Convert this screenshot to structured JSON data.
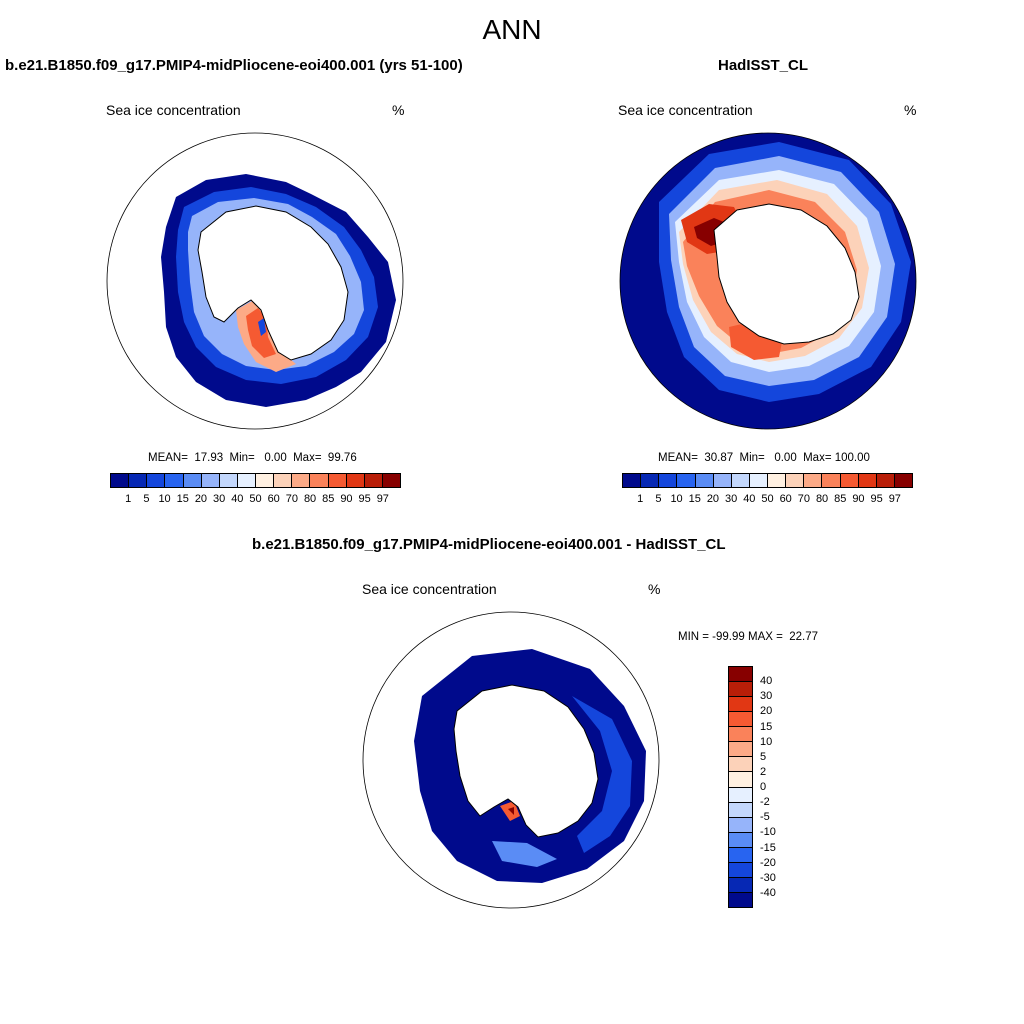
{
  "title": "ANN",
  "panels": [
    {
      "title": "b.e21.B1850.f09_g17.PMIP4-midPliocene-eoi400.001 (yrs 51-100)",
      "variable": "Sea ice concentration",
      "units": "%",
      "stats": "MEAN=  17.93  Min=   0.00  Max=  99.76"
    },
    {
      "title": "HadISST_CL",
      "variable": "Sea ice concentration",
      "units": "%",
      "stats": "MEAN=  30.87  Min=   0.00  Max= 100.00"
    },
    {
      "title": "b.e21.B1850.f09_g17.PMIP4-midPliocene-eoi400.001 - HadISST_CL",
      "variable": "Sea ice concentration",
      "units": "%",
      "stats": "MIN = -99.99 MAX =  22.77"
    }
  ],
  "colorbar_abs": {
    "labels": [
      "1",
      "5",
      "10",
      "15",
      "20",
      "30",
      "40",
      "50",
      "60",
      "70",
      "80",
      "85",
      "90",
      "95",
      "97"
    ],
    "colors": [
      "#000a8c",
      "#0628b4",
      "#1446dc",
      "#2864f0",
      "#5a8cf5",
      "#96b4fa",
      "#c3d7fc",
      "#e6f0ff",
      "#fff0e1",
      "#fcd2b9",
      "#fcaa87",
      "#fa825a",
      "#f55a32",
      "#e13714",
      "#b91e08",
      "#870000"
    ]
  },
  "colorbar_diff": {
    "labels": [
      "40",
      "30",
      "20",
      "15",
      "10",
      "5",
      "2",
      "0",
      "-2",
      "-5",
      "-10",
      "-15",
      "-20",
      "-30",
      "-40"
    ],
    "colors": [
      "#870000",
      "#b91e08",
      "#e13714",
      "#f55a32",
      "#fa825a",
      "#fcaa87",
      "#fcd2b9",
      "#fff0e1",
      "#e6f0ff",
      "#c3d7fc",
      "#96b4fa",
      "#5a8cf5",
      "#2864f0",
      "#1446dc",
      "#0628b4",
      "#000a8c"
    ]
  }
}
